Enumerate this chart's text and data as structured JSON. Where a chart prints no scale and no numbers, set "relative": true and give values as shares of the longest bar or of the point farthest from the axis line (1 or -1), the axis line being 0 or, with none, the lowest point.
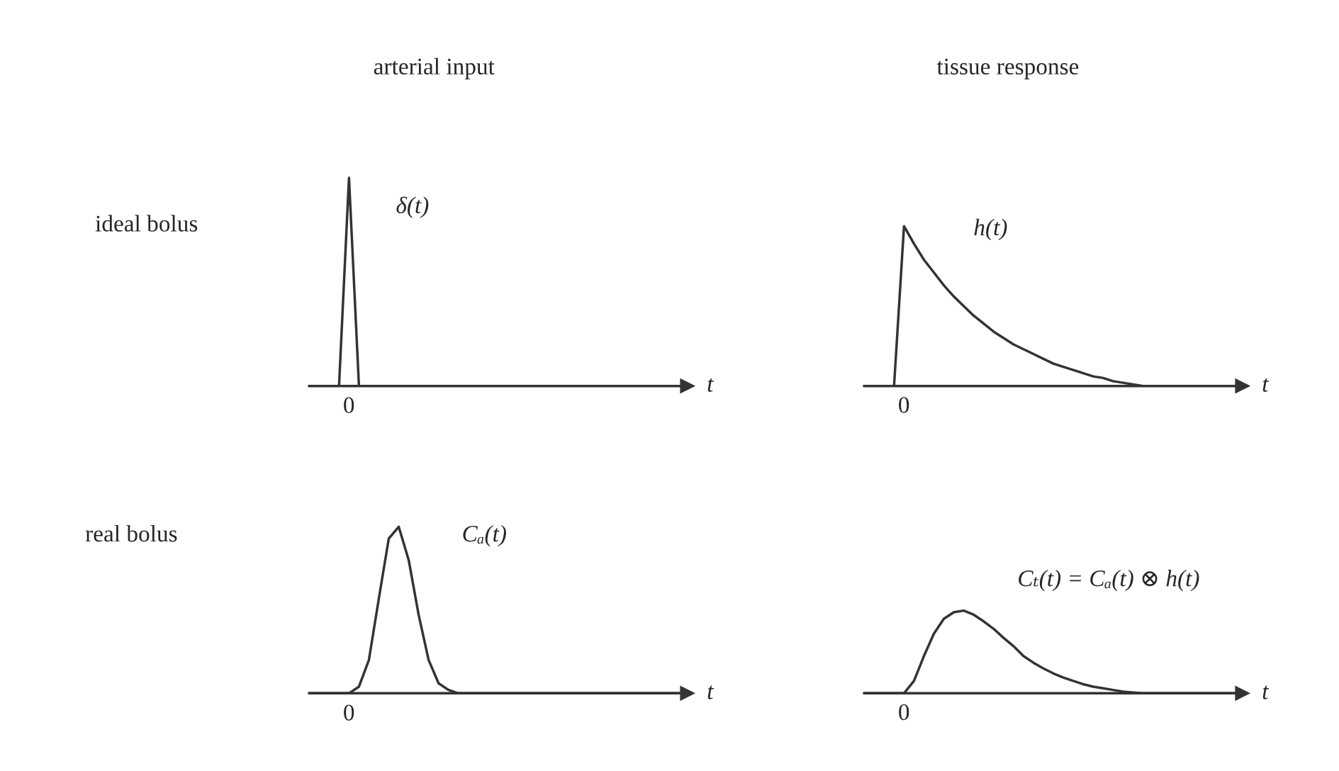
{
  "chart_data": [
    {
      "type": "line",
      "title": "arterial input",
      "ylabel": "ideal bolus",
      "xlabel": "t",
      "relative": true,
      "categories": [
        null,
        null,
        null,
        null,
        null,
        null,
        null,
        null,
        null,
        null,
        null,
        null,
        null,
        null,
        null,
        null,
        null,
        null,
        null,
        null,
        null,
        null,
        null,
        null,
        null,
        null,
        null,
        null,
        null,
        null,
        null,
        null,
        null,
        null,
        null,
        null,
        null,
        null,
        null
      ],
      "series": [
        {
          "color": "#333333",
          "values": [
            0,
            0,
            0,
            0,
            1,
            0,
            0,
            0,
            0,
            0,
            0,
            0,
            0,
            0,
            0,
            0,
            0,
            0,
            0,
            0,
            0,
            0,
            0,
            0,
            0,
            0,
            0,
            0,
            0,
            0,
            0,
            0,
            0,
            0,
            0,
            0,
            0,
            0,
            0
          ]
        }
      ],
      "annotations": [
        "δ(t)",
        "0"
      ]
    },
    {
      "type": "line",
      "title": "tissue response",
      "xlabel": "t",
      "relative": true,
      "categories": [
        null,
        null,
        null,
        null,
        null,
        null,
        null,
        null,
        null,
        null,
        null,
        null,
        null,
        null,
        null,
        null,
        null,
        null,
        null,
        null,
        null,
        null,
        null,
        null,
        null,
        null,
        null,
        null,
        null,
        null,
        null,
        null,
        null,
        null,
        null,
        null,
        null,
        null,
        null
      ],
      "series": [
        {
          "color": "#333333",
          "values": [
            0,
            0,
            0,
            0,
            1,
            0.89,
            0.79,
            0.71,
            0.63,
            0.56,
            0.5,
            0.44,
            0.39,
            0.34,
            0.3,
            0.26,
            0.23,
            0.2,
            0.17,
            0.14,
            0.12,
            0.1,
            0.08,
            0.06,
            0.05,
            0.03,
            0.02,
            0.01,
            0,
            0,
            0,
            0,
            0,
            0,
            0,
            0,
            0,
            0,
            0
          ]
        }
      ],
      "annotations": [
        "h(t)",
        "0"
      ]
    },
    {
      "type": "line",
      "ylabel": "real bolus",
      "xlabel": "t",
      "relative": true,
      "categories": [
        null,
        null,
        null,
        null,
        null,
        null,
        null,
        null,
        null,
        null,
        null,
        null,
        null,
        null,
        null,
        null,
        null,
        null,
        null,
        null,
        null,
        null,
        null,
        null,
        null,
        null,
        null,
        null,
        null,
        null,
        null,
        null,
        null,
        null,
        null,
        null,
        null,
        null,
        null
      ],
      "series": [
        {
          "color": "#333333",
          "values": [
            0,
            0,
            0,
            0,
            0,
            0.04,
            0.2,
            0.57,
            0.93,
            1,
            0.8,
            0.47,
            0.2,
            0.06,
            0.02,
            0,
            0,
            0,
            0,
            0,
            0,
            0,
            0,
            0,
            0,
            0,
            0,
            0,
            0,
            0,
            0,
            0,
            0,
            0,
            0,
            0,
            0,
            0,
            0
          ]
        }
      ],
      "annotations": [
        "Cₐ(t)",
        "0"
      ]
    },
    {
      "type": "line",
      "xlabel": "t",
      "relative": true,
      "categories": [
        null,
        null,
        null,
        null,
        null,
        null,
        null,
        null,
        null,
        null,
        null,
        null,
        null,
        null,
        null,
        null,
        null,
        null,
        null,
        null,
        null,
        null,
        null,
        null,
        null,
        null,
        null,
        null,
        null,
        null,
        null,
        null,
        null,
        null,
        null,
        null,
        null,
        null,
        null
      ],
      "series": [
        {
          "color": "#333333",
          "values": [
            0,
            0,
            0,
            0,
            0,
            0.15,
            0.45,
            0.72,
            0.9,
            0.98,
            1,
            0.95,
            0.87,
            0.78,
            0.67,
            0.57,
            0.45,
            0.37,
            0.3,
            0.24,
            0.19,
            0.15,
            0.11,
            0.08,
            0.06,
            0.04,
            0.02,
            0.01,
            0,
            0,
            0,
            0,
            0,
            0,
            0,
            0,
            0,
            0,
            0
          ]
        }
      ],
      "annotations": [
        "Cₜ(t) = Cₐ(t) ⊗ h(t)",
        "0"
      ]
    }
  ]
}
